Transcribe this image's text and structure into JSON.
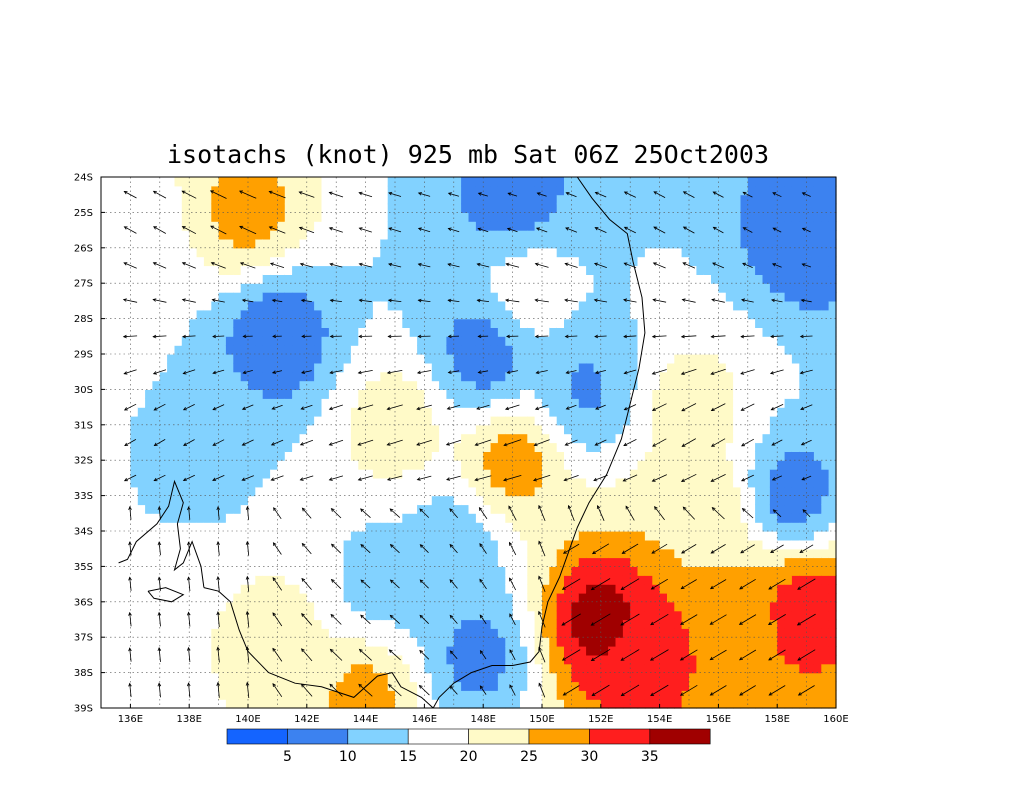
{
  "title": "isotachs (knot) 925 mb Sat 06Z 25Oct2003",
  "map": {
    "lat_labels": [
      "24S",
      "25S",
      "26S",
      "27S",
      "28S",
      "29S",
      "30S",
      "31S",
      "32S",
      "33S",
      "34S",
      "35S",
      "36S",
      "37S",
      "38S",
      "39S"
    ],
    "lon_labels": [
      "136E",
      "138E",
      "140E",
      "142E",
      "144E",
      "146E",
      "148E",
      "150E",
      "152E",
      "154E",
      "156E",
      "158E",
      "160E"
    ],
    "lat_range": [
      -39,
      -24
    ],
    "lon_range": [
      135,
      160
    ]
  },
  "colorbar": {
    "colors": [
      "#1464ff",
      "#3c82f0",
      "#82d2ff",
      "#ffffff",
      "#fffac8",
      "#ffa000",
      "#ff1e1e",
      "#a00000"
    ],
    "labels": [
      "5",
      "10",
      "15",
      "20",
      "25",
      "30",
      "35"
    ]
  },
  "chart_data": {
    "type": "heatmap",
    "title": "isotachs (knot) 925 mb Sat 06Z 25Oct2003",
    "units": "knot",
    "levels": [
      5,
      10,
      15,
      20,
      25,
      30,
      35
    ],
    "level_colors": [
      "#1464ff",
      "#3c82f0",
      "#82d2ff",
      "#ffffff",
      "#fffac8",
      "#ffa000",
      "#ff1e1e",
      "#a00000"
    ],
    "lon_range": [
      135,
      160
    ],
    "lat_range": [
      -39,
      -24
    ],
    "speed_centers": [
      {
        "lon": 152.0,
        "lat": -36.5,
        "speed": 38
      },
      {
        "lon": 153.5,
        "lat": -37.5,
        "speed": 33
      },
      {
        "lon": 159.0,
        "lat": -36.2,
        "speed": 34
      },
      {
        "lon": 157.0,
        "lat": -36.5,
        "speed": 29
      },
      {
        "lon": 149.0,
        "lat": -32.0,
        "speed": 28
      },
      {
        "lon": 140.0,
        "lat": -25.0,
        "speed": 27
      },
      {
        "lon": 144.0,
        "lat": -38.7,
        "speed": 27
      },
      {
        "lon": 145.0,
        "lat": -31.0,
        "speed": 23
      },
      {
        "lon": 141.0,
        "lat": -37.0,
        "speed": 22
      },
      {
        "lon": 155.0,
        "lat": -30.5,
        "speed": 22
      },
      {
        "lon": 155.5,
        "lat": -33.5,
        "speed": 24
      },
      {
        "lon": 149.5,
        "lat": -27.2,
        "speed": 18
      },
      {
        "lon": 136.0,
        "lat": -26.0,
        "speed": 17
      },
      {
        "lon": 141.0,
        "lat": -28.5,
        "speed": 6
      },
      {
        "lon": 149.0,
        "lat": -24.5,
        "speed": 7
      },
      {
        "lon": 159.0,
        "lat": -25.5,
        "speed": 6
      },
      {
        "lon": 158.5,
        "lat": -33.0,
        "speed": 7
      },
      {
        "lon": 148.0,
        "lat": -29.0,
        "speed": 7
      },
      {
        "lon": 151.5,
        "lat": -30.0,
        "speed": 9
      },
      {
        "lon": 147.8,
        "lat": -37.5,
        "speed": 8
      },
      {
        "lon": 147.0,
        "lat": -34.5,
        "speed": 11
      },
      {
        "lon": 144.5,
        "lat": -35.5,
        "speed": 13
      },
      {
        "lon": 138.5,
        "lat": -32.0,
        "speed": 14
      }
    ],
    "wind_field": "arrow vectors on a 1-degree grid: southeasterly/easterly flow north of 33S, strong southwesterly to westerly flow off the southeast coast near 36S-38S"
  }
}
